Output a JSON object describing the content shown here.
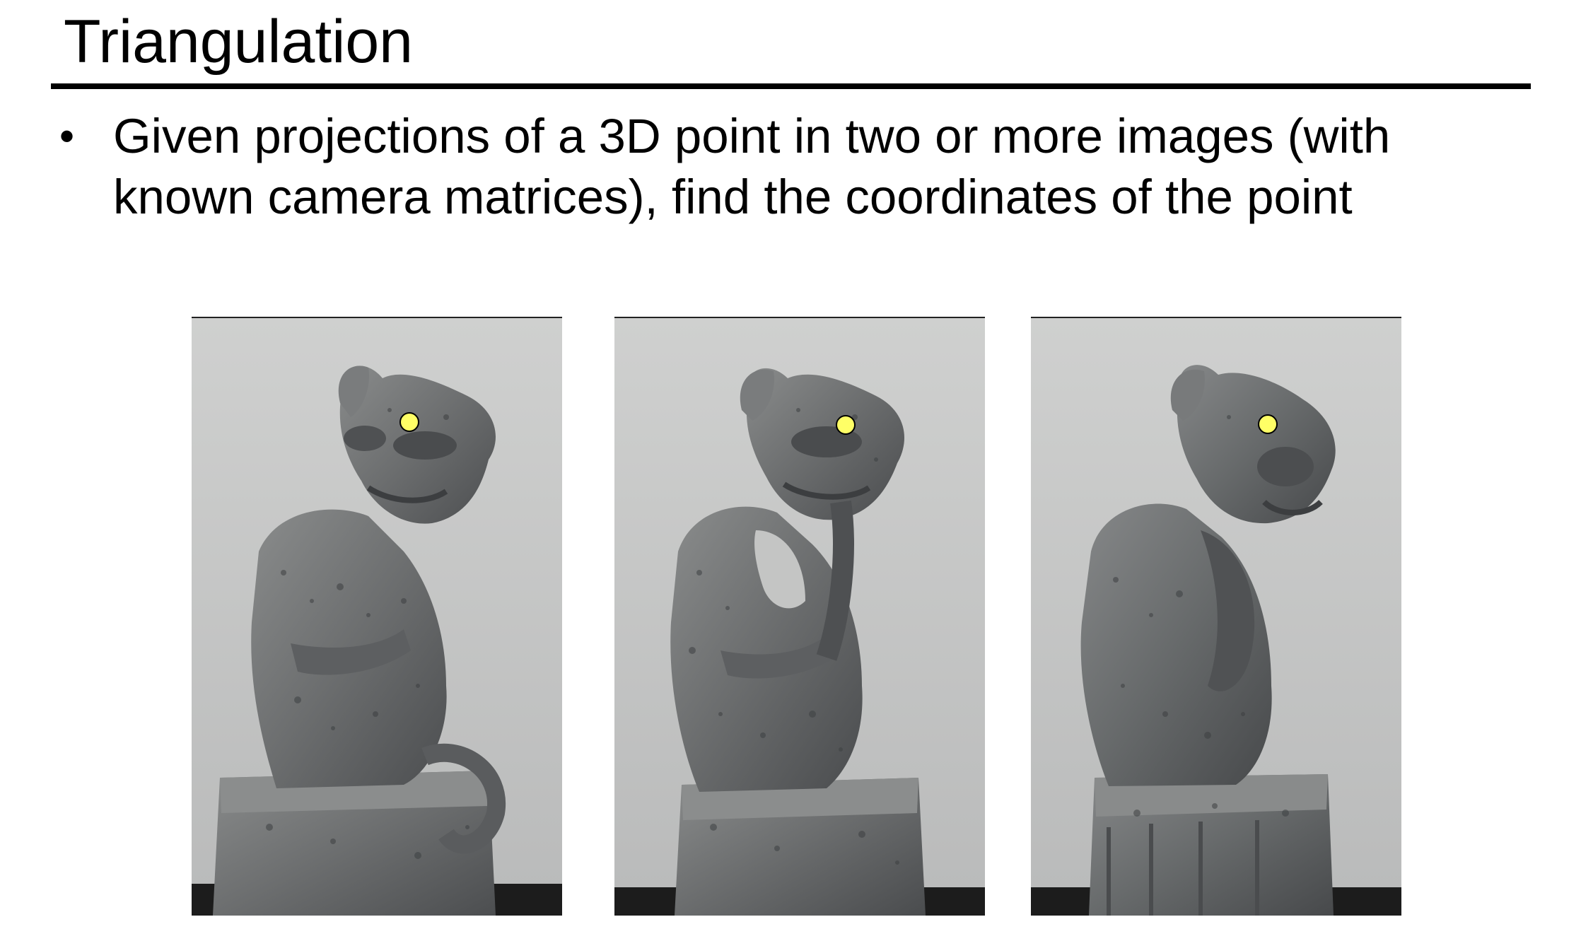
{
  "slide": {
    "title": "Triangulation",
    "bullets": [
      {
        "lines": [
          "Given projections of a 3D point in two or more images (with",
          "known camera matrices), find the coordinates of the point"
        ]
      }
    ]
  },
  "figure": {
    "views": [
      {
        "subject": "stone-gargoyle-statue",
        "viewpoint": "left"
      },
      {
        "subject": "stone-gargoyle-statue",
        "viewpoint": "center"
      },
      {
        "subject": "stone-gargoyle-statue",
        "viewpoint": "right"
      }
    ],
    "marker": {
      "shape": "circle",
      "fill_color": "#ffff66",
      "stroke_color": "#000000"
    },
    "colors": {
      "background_wall": "#c9cac9",
      "stone": "#6e7070",
      "floor": "#1c1c1c"
    }
  }
}
